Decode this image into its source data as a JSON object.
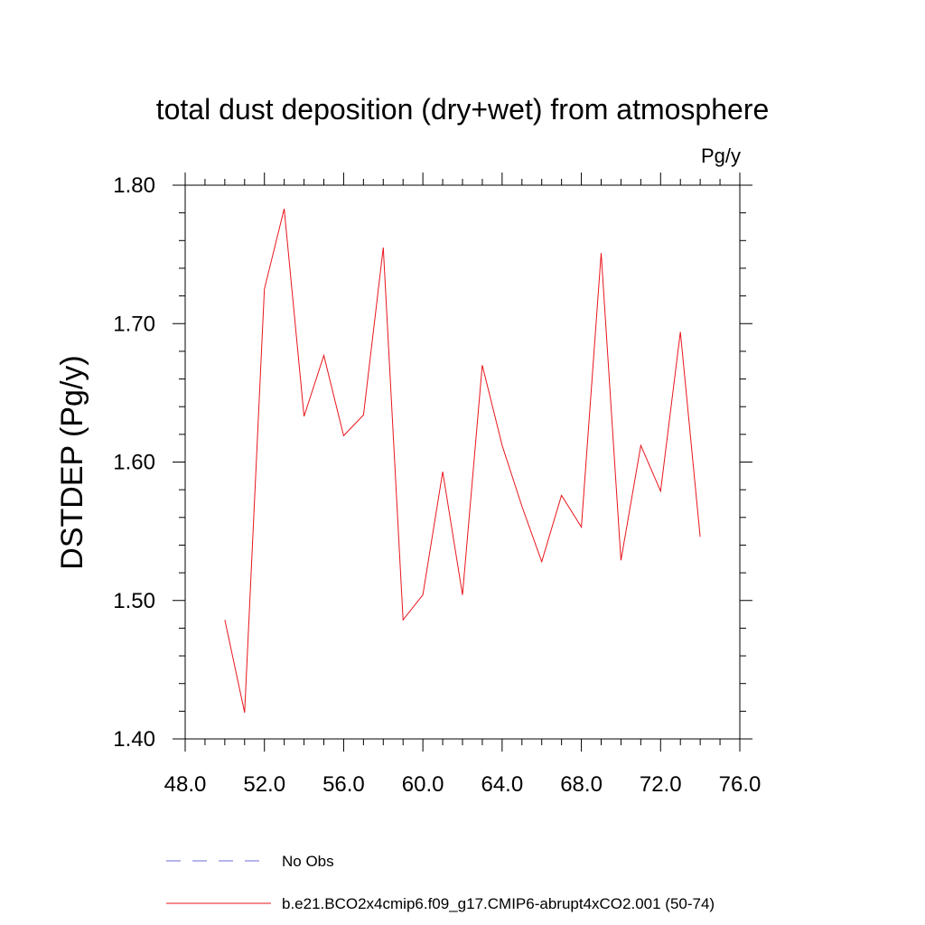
{
  "chart_data": {
    "type": "line",
    "title": "total dust deposition (dry+wet) from atmosphere",
    "units": "Pg/y",
    "ylabel": "DSTDEP  (Pg/y)",
    "xlabel": "",
    "xlim": [
      48,
      76
    ],
    "ylim": [
      1.4,
      1.8
    ],
    "x_ticks": [
      48,
      52,
      56,
      60,
      64,
      68,
      72,
      76
    ],
    "x_tick_labels": [
      "48.0",
      "52.0",
      "56.0",
      "60.0",
      "64.0",
      "68.0",
      "72.0",
      "76.0"
    ],
    "y_ticks": [
      1.4,
      1.5,
      1.6,
      1.7,
      1.8
    ],
    "y_tick_labels": [
      "1.40",
      "1.50",
      "1.60",
      "1.70",
      "1.80"
    ],
    "grid": false,
    "legend_position": "bottom",
    "series": [
      {
        "name": "b.e21.BCO2x4cmip6.f09_g17.CMIP6-abrupt4xCO2.001 (50-74)",
        "color": "#e8151b",
        "style": "solid",
        "x": [
          50,
          51,
          52,
          53,
          54,
          55,
          56,
          57,
          58,
          59,
          60,
          61,
          62,
          63,
          64,
          65,
          66,
          67,
          68,
          69,
          70,
          71,
          72,
          73,
          74
        ],
        "y": [
          1.486,
          1.419,
          1.725,
          1.783,
          1.633,
          1.677,
          1.619,
          1.634,
          1.755,
          1.486,
          1.504,
          1.593,
          1.504,
          1.67,
          1.612,
          1.568,
          1.528,
          1.576,
          1.553,
          1.751,
          1.529,
          1.612,
          1.579,
          1.694,
          1.546
        ]
      }
    ],
    "legend": [
      {
        "label": "No Obs",
        "color": "#6b6bd6",
        "style": "dashed"
      },
      {
        "label": "b.e21.BCO2x4cmip6.f09_g17.CMIP6-abrupt4xCO2.001 (50-74)",
        "color": "#e8151b",
        "style": "solid"
      }
    ]
  }
}
